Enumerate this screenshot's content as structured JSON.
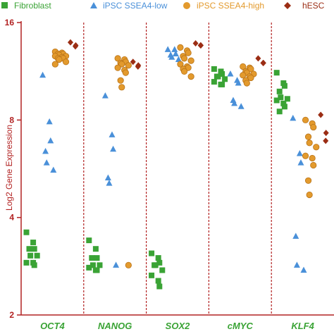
{
  "chart_data": {
    "type": "scatter",
    "title": "",
    "ylabel": "Log2 Gene Expression",
    "ylim": [
      2,
      16
    ],
    "y_scale": "log2",
    "yticks": [
      2,
      4,
      8,
      16
    ],
    "ytick_labels": [
      "2",
      "4",
      "8",
      "16"
    ],
    "categories": [
      "OCT4",
      "NANOG",
      "SOX2",
      "cMYC",
      "KLF4"
    ],
    "legend_position": "top",
    "grid": false,
    "series": [
      {
        "name": "Fibroblast",
        "color": "#3aa335",
        "marker": "square",
        "points": [
          [
            0,
            3.6
          ],
          [
            0,
            3.35
          ],
          [
            0,
            3.2
          ],
          [
            0,
            3.2
          ],
          [
            0,
            3.05
          ],
          [
            0,
            3.05
          ],
          [
            0,
            2.9
          ],
          [
            0,
            2.9
          ],
          [
            0,
            2.85
          ],
          [
            1,
            3.4
          ],
          [
            1,
            3.2
          ],
          [
            1,
            3.0
          ],
          [
            1,
            3.0
          ],
          [
            1,
            2.85
          ],
          [
            1,
            2.85
          ],
          [
            1,
            2.8
          ],
          [
            1,
            2.75
          ],
          [
            1,
            2.75
          ],
          [
            2,
            3.1
          ],
          [
            2,
            3.0
          ],
          [
            2,
            2.9
          ],
          [
            2,
            2.85
          ],
          [
            2,
            2.85
          ],
          [
            2,
            2.75
          ],
          [
            2,
            2.65
          ],
          [
            2,
            2.55
          ],
          [
            2,
            2.45
          ],
          [
            3,
            11.5
          ],
          [
            3,
            11.3
          ],
          [
            3,
            11.1
          ],
          [
            3,
            10.9
          ],
          [
            3,
            10.9
          ],
          [
            3,
            10.7
          ],
          [
            3,
            10.5
          ],
          [
            3,
            10.3
          ],
          [
            3,
            10.3
          ],
          [
            4,
            11.2
          ],
          [
            4,
            10.4
          ],
          [
            4,
            10.2
          ],
          [
            4,
            9.8
          ],
          [
            4,
            9.4
          ],
          [
            4,
            9.3
          ],
          [
            4,
            9.2
          ],
          [
            4,
            9.0
          ],
          [
            4,
            8.8
          ],
          [
            4,
            8.5
          ]
        ]
      },
      {
        "name": "iPSC SSEA4-low",
        "color": "#4a90d9",
        "marker": "triangle",
        "points": [
          [
            0,
            11.0
          ],
          [
            0,
            7.9
          ],
          [
            0,
            6.9
          ],
          [
            0,
            6.4
          ],
          [
            0,
            5.9
          ],
          [
            0,
            5.6
          ],
          [
            1,
            9.5
          ],
          [
            1,
            7.2
          ],
          [
            1,
            6.5
          ],
          [
            1,
            5.3
          ],
          [
            1,
            5.1
          ],
          [
            1,
            2.85
          ],
          [
            2,
            13.2
          ],
          [
            2,
            13.2
          ],
          [
            2,
            12.8
          ],
          [
            2,
            12.7
          ],
          [
            2,
            12.5
          ],
          [
            2,
            12.3
          ],
          [
            3,
            11.1
          ],
          [
            3,
            10.6
          ],
          [
            3,
            10.4
          ],
          [
            3,
            9.2
          ],
          [
            3,
            9.0
          ],
          [
            3,
            8.8
          ],
          [
            4,
            8.1
          ],
          [
            4,
            6.3
          ],
          [
            4,
            5.9
          ],
          [
            4,
            3.5
          ],
          [
            4,
            2.85
          ],
          [
            4,
            2.75
          ]
        ]
      },
      {
        "name": "iPSC SSEA4-high",
        "color": "#e39a2d",
        "marker": "circle",
        "points": [
          [
            0,
            13.0
          ],
          [
            0,
            12.9
          ],
          [
            0,
            12.8
          ],
          [
            0,
            12.8
          ],
          [
            0,
            12.7
          ],
          [
            0,
            12.6
          ],
          [
            0,
            12.6
          ],
          [
            0,
            12.5
          ],
          [
            0,
            12.4
          ],
          [
            0,
            12.4
          ],
          [
            0,
            12.3
          ],
          [
            0,
            12.1
          ],
          [
            0,
            11.9
          ],
          [
            1,
            12.4
          ],
          [
            1,
            12.3
          ],
          [
            1,
            12.1
          ],
          [
            1,
            12.0
          ],
          [
            1,
            11.9
          ],
          [
            1,
            11.8
          ],
          [
            1,
            11.6
          ],
          [
            1,
            11.4
          ],
          [
            1,
            11.2
          ],
          [
            1,
            10.6
          ],
          [
            1,
            10.1
          ],
          [
            1,
            2.85
          ],
          [
            2,
            13.4
          ],
          [
            2,
            13.1
          ],
          [
            2,
            12.9
          ],
          [
            2,
            12.6
          ],
          [
            2,
            12.4
          ],
          [
            2,
            12.2
          ],
          [
            2,
            11.9
          ],
          [
            2,
            11.7
          ],
          [
            2,
            11.6
          ],
          [
            2,
            11.5
          ],
          [
            2,
            11.3
          ],
          [
            2,
            10.9
          ],
          [
            3,
            11.7
          ],
          [
            3,
            11.6
          ],
          [
            3,
            11.5
          ],
          [
            3,
            11.3
          ],
          [
            3,
            11.2
          ],
          [
            3,
            11.1
          ],
          [
            3,
            11.0
          ],
          [
            3,
            10.9
          ],
          [
            3,
            10.8
          ],
          [
            3,
            10.6
          ],
          [
            3,
            10.4
          ],
          [
            4,
            8.0
          ],
          [
            4,
            7.8
          ],
          [
            4,
            7.6
          ],
          [
            4,
            7.1
          ],
          [
            4,
            6.8
          ],
          [
            4,
            6.6
          ],
          [
            4,
            6.2
          ],
          [
            4,
            6.1
          ],
          [
            4,
            5.8
          ],
          [
            4,
            5.2
          ],
          [
            4,
            4.7
          ]
        ]
      },
      {
        "name": "hESC",
        "color": "#9b2d14",
        "marker": "diamond",
        "points": [
          [
            0,
            13.9
          ],
          [
            0,
            13.6
          ],
          [
            0,
            13.5
          ],
          [
            1,
            12.1
          ],
          [
            1,
            11.8
          ],
          [
            1,
            11.7
          ],
          [
            2,
            13.8
          ],
          [
            2,
            13.6
          ],
          [
            2,
            13.6
          ],
          [
            3,
            12.4
          ],
          [
            3,
            12.0
          ],
          [
            3,
            12.0
          ],
          [
            4,
            8.3
          ],
          [
            4,
            7.3
          ],
          [
            4,
            6.9
          ]
        ]
      }
    ]
  }
}
